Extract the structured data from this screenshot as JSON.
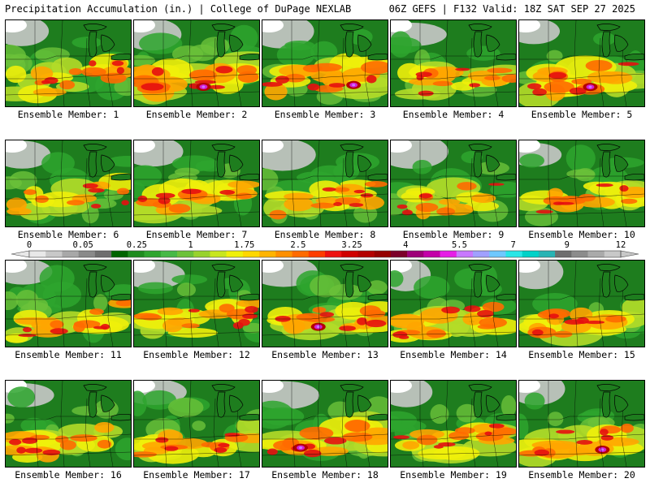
{
  "header": {
    "left": "Precipitation Accumulation (in.) | College of DuPage NEXLAB",
    "right": "06Z GEFS | F132 Valid: 18Z SAT SEP 27 2025"
  },
  "caption_prefix": "Ensemble Member: ",
  "members": [
    {
      "id": "1",
      "label": "Ensemble Member: 1",
      "wet": 0.55
    },
    {
      "id": "2",
      "label": "Ensemble Member: 2",
      "wet": 0.85
    },
    {
      "id": "3",
      "label": "Ensemble Member: 3",
      "wet": 0.8
    },
    {
      "id": "4",
      "label": "Ensemble Member: 4",
      "wet": 0.55
    },
    {
      "id": "5",
      "label": "Ensemble Member: 5",
      "wet": 0.75
    },
    {
      "id": "6",
      "label": "Ensemble Member: 6",
      "wet": 0.45
    },
    {
      "id": "7",
      "label": "Ensemble Member: 7",
      "wet": 0.65
    },
    {
      "id": "8",
      "label": "Ensemble Member: 8",
      "wet": 0.5
    },
    {
      "id": "9",
      "label": "Ensemble Member: 9",
      "wet": 0.45
    },
    {
      "id": "10",
      "label": "Ensemble Member: 10",
      "wet": 0.5
    },
    {
      "id": "11",
      "label": "Ensemble Member: 11",
      "wet": 0.55
    },
    {
      "id": "12",
      "label": "Ensemble Member: 12",
      "wet": 0.55
    },
    {
      "id": "13",
      "label": "Ensemble Member: 13",
      "wet": 0.7
    },
    {
      "id": "14",
      "label": "Ensemble Member: 14",
      "wet": 0.6
    },
    {
      "id": "15",
      "label": "Ensemble Member: 15",
      "wet": 0.65
    },
    {
      "id": "16",
      "label": "Ensemble Member: 16",
      "wet": 0.55
    },
    {
      "id": "17",
      "label": "Ensemble Member: 17",
      "wet": 0.55
    },
    {
      "id": "18",
      "label": "Ensemble Member: 18",
      "wet": 0.8
    },
    {
      "id": "19",
      "label": "Ensemble Member: 19",
      "wet": 0.55
    },
    {
      "id": "20",
      "label": "Ensemble Member: 20",
      "wet": 0.75
    }
  ],
  "colorbar": {
    "labels": [
      "0",
      "0.05",
      "0.25",
      "1",
      "1.75",
      "2.5",
      "3.25",
      "4",
      "5.5",
      "7",
      "9",
      "12"
    ],
    "colors": [
      "#e8e8e8",
      "#c8c8c8",
      "#a8a8a8",
      "#8a8a8a",
      "#6e6e6e",
      "#006400",
      "#1e8c1e",
      "#2ea52e",
      "#46b946",
      "#6cc23a",
      "#98d22e",
      "#c8e61e",
      "#f0f00a",
      "#ffd700",
      "#ffb400",
      "#ff9000",
      "#ff6a00",
      "#ff3c00",
      "#ee1010",
      "#d00000",
      "#b40000",
      "#960000",
      "#7c0028",
      "#9e0078",
      "#c400a8",
      "#e61ee6",
      "#c878ff",
      "#a0a0ff",
      "#6ec8ff",
      "#28e6e6",
      "#00d2c8",
      "#28b4b4",
      "#6e6e6e",
      "#8c8c8c",
      "#aaaaaa",
      "#c8c8c8"
    ]
  },
  "palette": {
    "white": "#ffffff",
    "gray_light": "#c8c8c8",
    "gray": "#9a9a9a",
    "green_dark": "#1e7d1e",
    "green": "#2ea52e",
    "green_light": "#6cc23a",
    "yellow_green": "#b4dc28",
    "yellow": "#f0f00a",
    "orange": "#ffa500",
    "orange_red": "#ff6a00",
    "red": "#e61010",
    "dark_red": "#b40000",
    "magenta": "#d21ed2",
    "violet": "#c878ff"
  }
}
